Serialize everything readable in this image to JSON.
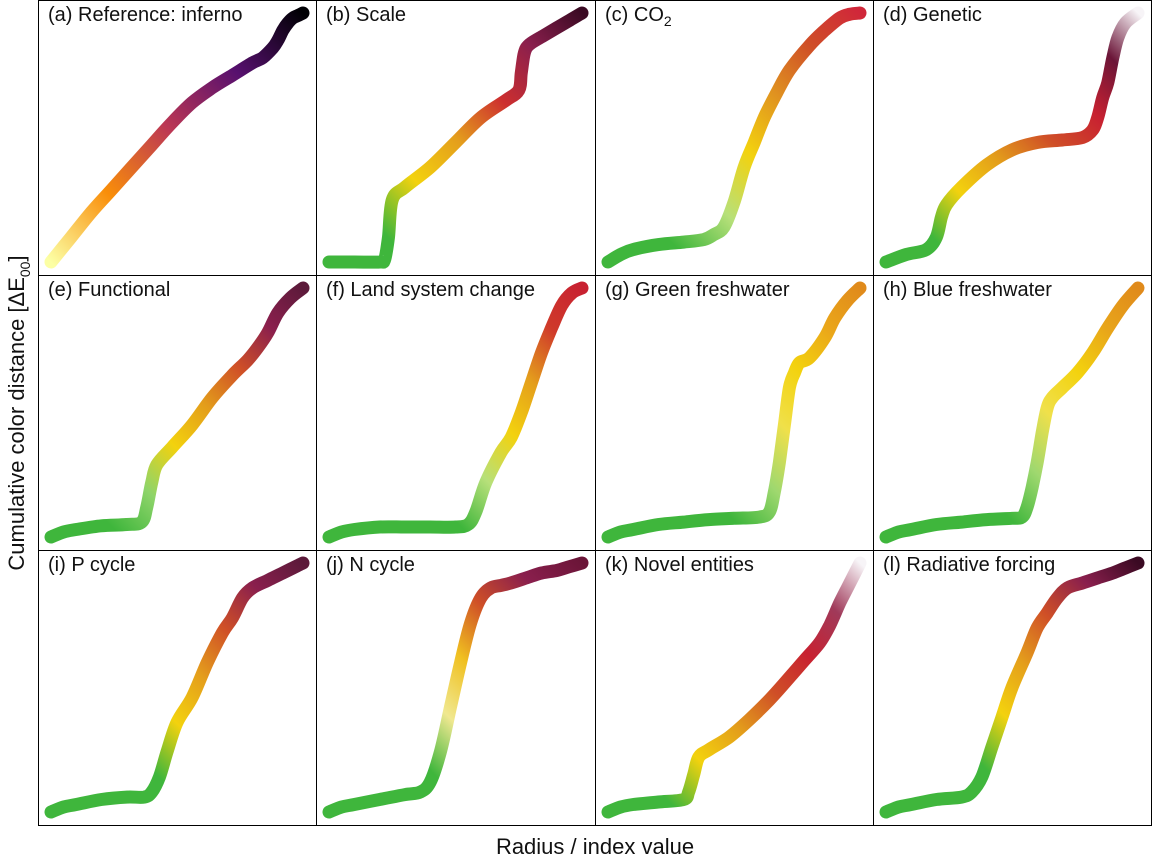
{
  "figure": {
    "xlabel": "Radius / index value",
    "ylabel_main": "Cumulative color distance [ΔE",
    "ylabel_sub": "00",
    "ylabel_close": "]"
  },
  "chart_data": [
    {
      "type": "line",
      "id": "a",
      "label": "(a) Reference: inferno",
      "xlim": [
        0,
        1
      ],
      "ylim": [
        0,
        1
      ],
      "x": [
        0,
        0.08,
        0.16,
        0.24,
        0.32,
        0.4,
        0.48,
        0.56,
        0.64,
        0.72,
        0.8,
        0.84,
        0.88,
        0.9,
        0.92,
        0.94,
        0.96,
        0.98,
        1
      ],
      "y": [
        0,
        0.1,
        0.2,
        0.29,
        0.38,
        0.47,
        0.56,
        0.64,
        0.7,
        0.75,
        0.8,
        0.82,
        0.86,
        0.89,
        0.93,
        0.96,
        0.98,
        0.99,
        1
      ],
      "colors": [
        "#fcffa4",
        "#f98e09",
        "#bc3754",
        "#57106e",
        "#000004"
      ]
    },
    {
      "type": "line",
      "id": "b",
      "label": "(b) Scale",
      "xlim": [
        0,
        1
      ],
      "ylim": [
        0,
        1
      ],
      "x": [
        0,
        0.1,
        0.2,
        0.22,
        0.235,
        0.25,
        0.3,
        0.4,
        0.5,
        0.6,
        0.7,
        0.75,
        0.76,
        0.77,
        0.78,
        0.8,
        0.85,
        0.9,
        0.95,
        1
      ],
      "y": [
        0,
        0,
        0,
        0.01,
        0.1,
        0.25,
        0.3,
        0.38,
        0.48,
        0.58,
        0.65,
        0.69,
        0.76,
        0.83,
        0.86,
        0.88,
        0.91,
        0.94,
        0.97,
        1
      ],
      "colors": [
        "#3fb63c",
        "#3fb63c",
        "#f3d20e",
        "#e49e1c",
        "#cd2f2f",
        "#8a1f4d",
        "#3b0a23"
      ]
    },
    {
      "type": "line",
      "id": "c",
      "label": "(c) CO",
      "label_sub": "2",
      "xlim": [
        0,
        1
      ],
      "ylim": [
        0,
        1
      ],
      "x": [
        0,
        0.05,
        0.1,
        0.2,
        0.3,
        0.38,
        0.42,
        0.46,
        0.5,
        0.54,
        0.58,
        0.62,
        0.67,
        0.72,
        0.8,
        0.86,
        0.92,
        0.96,
        1
      ],
      "y": [
        0,
        0.03,
        0.05,
        0.07,
        0.08,
        0.09,
        0.11,
        0.14,
        0.24,
        0.38,
        0.48,
        0.58,
        0.68,
        0.77,
        0.87,
        0.93,
        0.98,
        0.995,
        1
      ],
      "colors": [
        "#3fb63c",
        "#3fb63c",
        "#b7e07a",
        "#f3d20e",
        "#e09320",
        "#cf4f27",
        "#d0273a"
      ]
    },
    {
      "type": "line",
      "id": "d",
      "label": "(d) Genetic",
      "xlim": [
        0,
        1
      ],
      "ylim": [
        0,
        1
      ],
      "x": [
        0,
        0.08,
        0.16,
        0.2,
        0.22,
        0.24,
        0.3,
        0.4,
        0.5,
        0.6,
        0.7,
        0.78,
        0.82,
        0.84,
        0.86,
        0.88,
        0.9,
        0.92,
        0.95,
        1
      ],
      "y": [
        0,
        0.03,
        0.05,
        0.1,
        0.18,
        0.23,
        0.3,
        0.39,
        0.45,
        0.48,
        0.49,
        0.5,
        0.53,
        0.58,
        0.66,
        0.72,
        0.82,
        0.9,
        0.96,
        1
      ],
      "colors": [
        "#3fb63c",
        "#3fb63c",
        "#f3d20e",
        "#e39d1b",
        "#cf4f27",
        "#c82131",
        "#6b1538",
        "#f7f4f7"
      ]
    },
    {
      "type": "line",
      "id": "e",
      "label": "(e) Functional",
      "xlim": [
        0,
        1
      ],
      "ylim": [
        0,
        1
      ],
      "x": [
        0,
        0.05,
        0.1,
        0.2,
        0.3,
        0.36,
        0.38,
        0.4,
        0.42,
        0.48,
        0.56,
        0.64,
        0.72,
        0.78,
        0.82,
        0.86,
        0.9,
        0.95,
        1
      ],
      "y": [
        0,
        0.02,
        0.03,
        0.045,
        0.05,
        0.06,
        0.12,
        0.22,
        0.29,
        0.36,
        0.45,
        0.56,
        0.65,
        0.71,
        0.76,
        0.82,
        0.9,
        0.96,
        1
      ],
      "colors": [
        "#3fb63c",
        "#3fb63c",
        "#8ed46a",
        "#f3d20e",
        "#e39d1b",
        "#cf4f27",
        "#8a1f4d",
        "#5c1a3a"
      ]
    },
    {
      "type": "line",
      "id": "f",
      "label": "(f) Land system change",
      "xlim": [
        0,
        1
      ],
      "ylim": [
        0,
        1
      ],
      "x": [
        0,
        0.05,
        0.1,
        0.2,
        0.3,
        0.4,
        0.5,
        0.55,
        0.58,
        0.62,
        0.68,
        0.72,
        0.76,
        0.8,
        0.84,
        0.88,
        0.92,
        0.96,
        1
      ],
      "y": [
        0,
        0.02,
        0.03,
        0.04,
        0.04,
        0.04,
        0.04,
        0.05,
        0.1,
        0.22,
        0.34,
        0.4,
        0.5,
        0.62,
        0.74,
        0.84,
        0.93,
        0.98,
        1
      ],
      "colors": [
        "#3fb63c",
        "#3fb63c",
        "#3fb63c",
        "#b7e07a",
        "#f3d20e",
        "#e49e1c",
        "#cf3a2a",
        "#c82131"
      ]
    },
    {
      "type": "line",
      "id": "g",
      "label": "(g) Green freshwater",
      "xlim": [
        0,
        1
      ],
      "ylim": [
        0,
        1
      ],
      "x": [
        0,
        0.05,
        0.1,
        0.2,
        0.3,
        0.4,
        0.5,
        0.6,
        0.64,
        0.66,
        0.68,
        0.7,
        0.72,
        0.74,
        0.76,
        0.8,
        0.86,
        0.9,
        0.95,
        1
      ],
      "y": [
        0,
        0.02,
        0.03,
        0.05,
        0.06,
        0.07,
        0.075,
        0.08,
        0.1,
        0.18,
        0.3,
        0.45,
        0.6,
        0.66,
        0.7,
        0.72,
        0.8,
        0.88,
        0.95,
        1
      ],
      "colors": [
        "#3fb63c",
        "#3fb63c",
        "#3fb63c",
        "#9fd86f",
        "#f0e04a",
        "#f3d20e",
        "#eaa61a",
        "#e08a1b"
      ]
    },
    {
      "type": "line",
      "id": "h",
      "label": "(h) Blue freshwater",
      "xlim": [
        0,
        1
      ],
      "ylim": [
        0,
        1
      ],
      "x": [
        0,
        0.05,
        0.1,
        0.2,
        0.3,
        0.4,
        0.5,
        0.54,
        0.56,
        0.58,
        0.6,
        0.62,
        0.64,
        0.66,
        0.7,
        0.76,
        0.82,
        0.88,
        0.94,
        1
      ],
      "y": [
        0,
        0.02,
        0.03,
        0.05,
        0.06,
        0.07,
        0.075,
        0.08,
        0.12,
        0.2,
        0.3,
        0.42,
        0.52,
        0.56,
        0.6,
        0.66,
        0.74,
        0.84,
        0.93,
        1
      ],
      "colors": [
        "#3fb63c",
        "#3fb63c",
        "#3fb63c",
        "#9fd86f",
        "#f0e04a",
        "#f3d20e",
        "#e8a51a",
        "#e08a1b"
      ]
    },
    {
      "type": "line",
      "id": "i",
      "label": "(i) P cycle",
      "xlim": [
        0,
        1
      ],
      "ylim": [
        0,
        1
      ],
      "x": [
        0,
        0.05,
        0.1,
        0.2,
        0.3,
        0.37,
        0.4,
        0.43,
        0.46,
        0.5,
        0.56,
        0.62,
        0.68,
        0.72,
        0.76,
        0.8,
        0.86,
        0.92,
        0.96,
        1
      ],
      "y": [
        0,
        0.02,
        0.03,
        0.05,
        0.06,
        0.06,
        0.08,
        0.14,
        0.24,
        0.36,
        0.46,
        0.6,
        0.72,
        0.78,
        0.86,
        0.9,
        0.93,
        0.96,
        0.98,
        1
      ],
      "colors": [
        "#3fb63c",
        "#3fb63c",
        "#3fb63c",
        "#f3d20e",
        "#e49e1c",
        "#cf4f27",
        "#8a1f4d",
        "#5c1a3a"
      ]
    },
    {
      "type": "line",
      "id": "j",
      "label": "(j) N cycle",
      "xlim": [
        0,
        1
      ],
      "ylim": [
        0,
        1
      ],
      "x": [
        0,
        0.05,
        0.1,
        0.2,
        0.3,
        0.36,
        0.4,
        0.44,
        0.48,
        0.52,
        0.56,
        0.6,
        0.64,
        0.68,
        0.72,
        0.78,
        0.84,
        0.9,
        0.95,
        1
      ],
      "y": [
        0,
        0.02,
        0.03,
        0.05,
        0.07,
        0.08,
        0.12,
        0.24,
        0.42,
        0.6,
        0.76,
        0.86,
        0.9,
        0.91,
        0.92,
        0.94,
        0.96,
        0.97,
        0.985,
        1
      ],
      "colors": [
        "#3fb63c",
        "#3fb63c",
        "#3fb63c",
        "#f0e890",
        "#f0c020",
        "#cf4f27",
        "#8a1f4d",
        "#6b1538"
      ]
    },
    {
      "type": "line",
      "id": "k",
      "label": "(k) Novel entities",
      "xlim": [
        0,
        1
      ],
      "ylim": [
        0,
        1
      ],
      "x": [
        0,
        0.05,
        0.1,
        0.2,
        0.3,
        0.32,
        0.34,
        0.36,
        0.4,
        0.48,
        0.56,
        0.64,
        0.72,
        0.78,
        0.84,
        0.88,
        0.92,
        0.96,
        1
      ],
      "y": [
        0,
        0.02,
        0.03,
        0.04,
        0.05,
        0.08,
        0.15,
        0.22,
        0.25,
        0.3,
        0.37,
        0.45,
        0.54,
        0.61,
        0.68,
        0.75,
        0.84,
        0.92,
        1
      ],
      "colors": [
        "#3fb63c",
        "#3fb63c",
        "#f3d20e",
        "#e39d1b",
        "#cf4f27",
        "#c82131",
        "#a03a5a",
        "#f7f4f7"
      ]
    },
    {
      "type": "line",
      "id": "l",
      "label": "(l) Radiative forcing",
      "xlim": [
        0,
        1
      ],
      "ylim": [
        0,
        1
      ],
      "x": [
        0,
        0.05,
        0.1,
        0.2,
        0.3,
        0.34,
        0.38,
        0.42,
        0.46,
        0.5,
        0.56,
        0.6,
        0.64,
        0.68,
        0.72,
        0.78,
        0.84,
        0.9,
        0.95,
        1
      ],
      "y": [
        0,
        0.02,
        0.03,
        0.05,
        0.06,
        0.08,
        0.14,
        0.26,
        0.38,
        0.5,
        0.64,
        0.74,
        0.8,
        0.86,
        0.9,
        0.92,
        0.94,
        0.96,
        0.98,
        1
      ],
      "colors": [
        "#3fb63c",
        "#3fb63c",
        "#3fb63c",
        "#f3d20e",
        "#e49e1c",
        "#cf4f27",
        "#8a1f4d",
        "#3b0a23"
      ]
    }
  ]
}
